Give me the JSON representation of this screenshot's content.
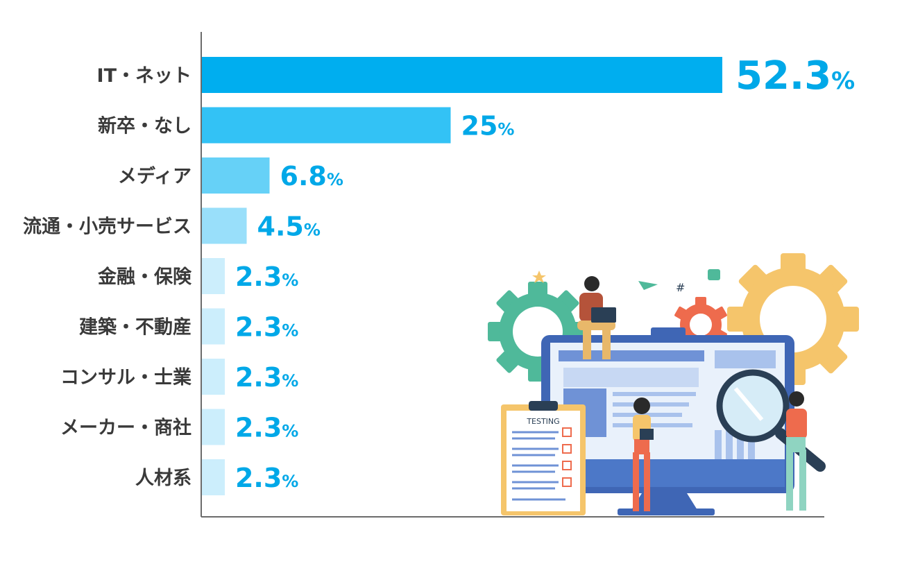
{
  "chart_data": {
    "type": "bar",
    "orientation": "horizontal",
    "categories": [
      "IT・ネット",
      "新卒・なし",
      "メディア",
      "流通・小売サービス",
      "金融・保険",
      "建築・不動産",
      "コンサル・士業",
      "メーカー・商社",
      "人材系"
    ],
    "values": [
      52.3,
      25,
      6.8,
      4.5,
      2.3,
      2.3,
      2.3,
      2.3,
      2.3
    ],
    "value_labels": [
      "52.3",
      "25",
      "6.8",
      "4.5",
      "2.3",
      "2.3",
      "2.3",
      "2.3",
      "2.3"
    ],
    "unit": "%",
    "xlim": [
      0,
      65
    ],
    "grid": false,
    "colors": [
      "#00aeef",
      "#33c2f5",
      "#66d1f7",
      "#99dffa",
      "#cceefc",
      "#cceefc",
      "#cceefc",
      "#cceefc",
      "#cceefc"
    ],
    "label_color": "#00a8e8"
  },
  "illustration": {
    "clipboard_title": "TESTING"
  }
}
